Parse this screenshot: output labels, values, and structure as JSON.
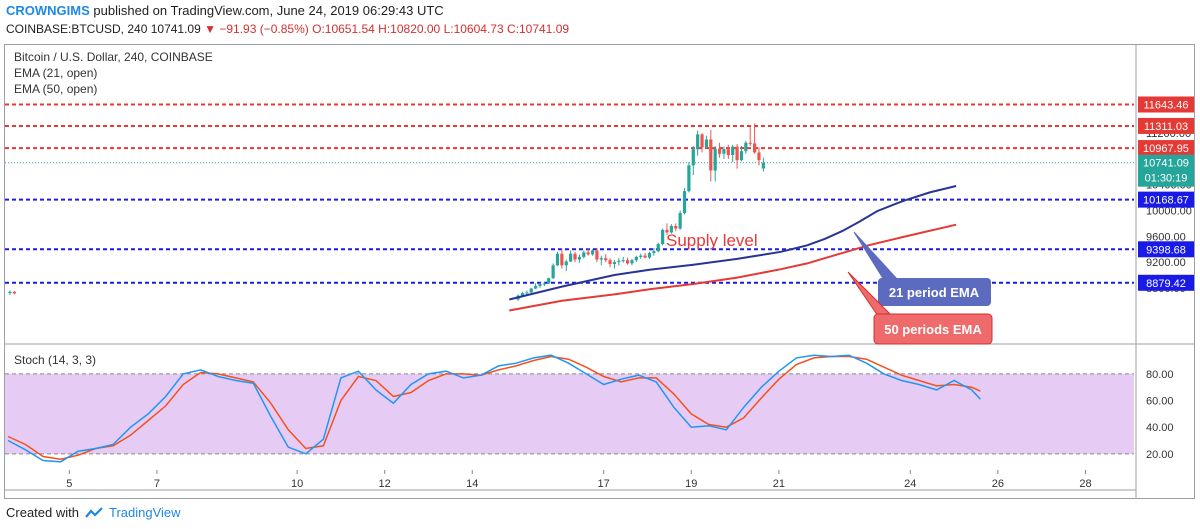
{
  "header": {
    "author": "CROWNGIMS",
    "published_text": "published on TradingView.com, June 24, 2019 06:29:43 UTC",
    "symbol": "COINBASE:BTCUSD, 240",
    "last": "10741.09",
    "change": "−91.93 (−0.85%)",
    "o": "O:10651.54",
    "h": "H:10820.00",
    "l": "L:10604.73",
    "c": "C:10741.09"
  },
  "legend": {
    "title": "Bitcoin / U.S. Dollar, 240, COINBASE",
    "ema21": "EMA (21, open)",
    "ema50": "EMA (50, open)",
    "stoch": "Stoch (14, 3, 3)"
  },
  "annotations": {
    "supply": "Supply level",
    "ema21_box": "21 period EMA",
    "ema50_box": "50 periods EMA"
  },
  "footer": {
    "created_with": "Created with",
    "brand": "TradingView"
  },
  "colors": {
    "up": "#26a69a",
    "down": "#ef5350",
    "ema21": "#283593",
    "ema50": "#e53935",
    "resistance": "#e53935",
    "support": "#1a1ae6",
    "stoch_k": "#2196f3",
    "stoch_d": "#f4511e",
    "stoch_band": "#e6ccf5",
    "box21": "#5c6bc0",
    "box50": "#ef6b6b"
  },
  "chart_data": {
    "type": "candlestick",
    "price_axis_ticks": [
      8800,
      9200,
      9600,
      10000,
      10400,
      11200
    ],
    "x_ticks": [
      {
        "label": "5",
        "i": 14
      },
      {
        "label": "7",
        "i": 34
      },
      {
        "label": "10",
        "i": 66
      },
      {
        "label": "12",
        "i": 86
      },
      {
        "label": "14",
        "i": 106
      },
      {
        "label": "17",
        "i": 136
      },
      {
        "label": "19",
        "i": 156
      },
      {
        "label": "21",
        "i": 176
      },
      {
        "label": "24",
        "i": 206
      },
      {
        "label": "26",
        "i": 226
      },
      {
        "label": "28",
        "i": 246
      }
    ],
    "red_levels": [
      {
        "value": 11643.46,
        "label": "11643.46"
      },
      {
        "value": 11311.03,
        "label": "11311.03"
      },
      {
        "value": 10967.95,
        "label": "10967.95"
      }
    ],
    "blue_levels": [
      {
        "value": 10168.67,
        "label": "10168.67"
      },
      {
        "value": 9398.68,
        "label": "9398.68"
      },
      {
        "value": 8879.42,
        "label": "8879.42"
      }
    ],
    "last_price": {
      "value": 10741.09,
      "label": "10741.09",
      "countdown": "01:30:19"
    },
    "candles": [
      [
        8720,
        8760,
        8690,
        8740
      ],
      [
        8740,
        8750,
        8700,
        8715
      ],
      [
        8620,
        8700,
        8600,
        8680
      ],
      [
        8680,
        8740,
        8660,
        8720
      ],
      [
        8720,
        8760,
        8700,
        8730
      ],
      [
        8730,
        8800,
        8720,
        8790
      ],
      [
        8790,
        8870,
        8780,
        8830
      ],
      [
        8830,
        8880,
        8800,
        8860
      ],
      [
        8860,
        8900,
        8830,
        8870
      ],
      [
        8870,
        8960,
        8860,
        8950
      ],
      [
        8950,
        9180,
        8940,
        9150
      ],
      [
        9150,
        9360,
        9140,
        9330
      ],
      [
        9330,
        9410,
        9100,
        9150
      ],
      [
        9150,
        9240,
        9060,
        9210
      ],
      [
        9210,
        9380,
        9200,
        9330
      ],
      [
        9330,
        9360,
        9200,
        9240
      ],
      [
        9240,
        9320,
        9190,
        9280
      ],
      [
        9280,
        9380,
        9260,
        9350
      ],
      [
        9350,
        9410,
        9300,
        9320
      ],
      [
        9320,
        9400,
        9300,
        9380
      ],
      [
        9380,
        9420,
        9200,
        9240
      ],
      [
        9240,
        9300,
        9150,
        9260
      ],
      [
        9260,
        9320,
        9200,
        9230
      ],
      [
        9230,
        9260,
        9120,
        9170
      ],
      [
        9170,
        9230,
        9100,
        9200
      ],
      [
        9200,
        9260,
        9150,
        9220
      ],
      [
        9220,
        9280,
        9190,
        9230
      ],
      [
        9230,
        9270,
        9160,
        9180
      ],
      [
        9180,
        9250,
        9150,
        9230
      ],
      [
        9230,
        9300,
        9200,
        9280
      ],
      [
        9280,
        9330,
        9250,
        9300
      ],
      [
        9300,
        9340,
        9260,
        9270
      ],
      [
        9270,
        9360,
        9250,
        9340
      ],
      [
        9340,
        9420,
        9300,
        9370
      ],
      [
        9370,
        9500,
        9350,
        9480
      ],
      [
        9480,
        9720,
        9460,
        9700
      ],
      [
        9700,
        9800,
        9620,
        9660
      ],
      [
        9660,
        9790,
        9640,
        9760
      ],
      [
        9760,
        9800,
        9680,
        9720
      ],
      [
        9720,
        10000,
        9700,
        9960
      ],
      [
        9960,
        10350,
        9940,
        10300
      ],
      [
        10300,
        10750,
        10280,
        10700
      ],
      [
        10700,
        11000,
        10550,
        10950
      ],
      [
        10950,
        11240,
        10850,
        11180
      ],
      [
        11180,
        11200,
        10900,
        10980
      ],
      [
        10980,
        11160,
        10960,
        11100
      ],
      [
        11100,
        11250,
        10450,
        10620
      ],
      [
        10620,
        11000,
        10450,
        10960
      ],
      [
        10960,
        11050,
        10820,
        10880
      ],
      [
        10880,
        10990,
        10800,
        10950
      ],
      [
        10950,
        11020,
        10800,
        10860
      ],
      [
        10860,
        11020,
        10750,
        10990
      ],
      [
        10990,
        11030,
        10650,
        10780
      ],
      [
        10780,
        11000,
        10760,
        10920
      ],
      [
        10920,
        11080,
        10880,
        11050
      ],
      [
        11050,
        11300,
        11000,
        11040
      ],
      [
        11040,
        11350,
        10880,
        10900
      ],
      [
        10900,
        10980,
        10700,
        10780
      ],
      [
        10651.54,
        10820,
        10604.73,
        10741.09
      ]
    ],
    "ema21": [
      [
        48,
        8620
      ],
      [
        60,
        8820
      ],
      [
        72,
        9000
      ],
      [
        80,
        9080
      ],
      [
        90,
        9160
      ],
      [
        100,
        9250
      ],
      [
        110,
        9360
      ],
      [
        116,
        9460
      ],
      [
        120,
        9560
      ],
      [
        124,
        9680
      ],
      [
        128,
        9830
      ],
      [
        132,
        9990
      ],
      [
        138,
        10150
      ],
      [
        144,
        10280
      ],
      [
        150,
        10380
      ]
    ],
    "ema50": [
      [
        48,
        8450
      ],
      [
        60,
        8600
      ],
      [
        72,
        8700
      ],
      [
        80,
        8780
      ],
      [
        90,
        8860
      ],
      [
        100,
        8960
      ],
      [
        110,
        9090
      ],
      [
        116,
        9180
      ],
      [
        120,
        9260
      ],
      [
        124,
        9340
      ],
      [
        130,
        9460
      ],
      [
        138,
        9590
      ],
      [
        150,
        9780
      ]
    ],
    "stoch_axis_ticks": [
      20,
      40,
      60,
      80
    ],
    "stoch_band": [
      20,
      80
    ],
    "stoch_k": [
      [
        0,
        30
      ],
      [
        4,
        23
      ],
      [
        8,
        15
      ],
      [
        12,
        14
      ],
      [
        16,
        22
      ],
      [
        20,
        24
      ],
      [
        24,
        27
      ],
      [
        28,
        40
      ],
      [
        32,
        50
      ],
      [
        36,
        63
      ],
      [
        40,
        80
      ],
      [
        44,
        83
      ],
      [
        48,
        78
      ],
      [
        52,
        75
      ],
      [
        56,
        73
      ],
      [
        60,
        48
      ],
      [
        64,
        25
      ],
      [
        68,
        20
      ],
      [
        72,
        31
      ],
      [
        76,
        77
      ],
      [
        80,
        82
      ],
      [
        84,
        68
      ],
      [
        88,
        58
      ],
      [
        92,
        72
      ],
      [
        96,
        80
      ],
      [
        100,
        82
      ],
      [
        104,
        77
      ],
      [
        108,
        79
      ],
      [
        112,
        86
      ],
      [
        116,
        88
      ],
      [
        120,
        92
      ],
      [
        124,
        94
      ],
      [
        128,
        88
      ],
      [
        132,
        80
      ],
      [
        136,
        72
      ],
      [
        140,
        76
      ],
      [
        144,
        79
      ],
      [
        148,
        74
      ],
      [
        152,
        55
      ],
      [
        156,
        40
      ],
      [
        160,
        41
      ],
      [
        164,
        38
      ],
      [
        168,
        55
      ],
      [
        172,
        70
      ],
      [
        176,
        82
      ],
      [
        180,
        92
      ],
      [
        184,
        94
      ],
      [
        188,
        93
      ],
      [
        192,
        94
      ],
      [
        196,
        88
      ],
      [
        200,
        80
      ],
      [
        204,
        75
      ],
      [
        208,
        72
      ],
      [
        212,
        68
      ],
      [
        216,
        75
      ],
      [
        220,
        68
      ],
      [
        222,
        61
      ]
    ],
    "stoch_d": [
      [
        0,
        33
      ],
      [
        4,
        27
      ],
      [
        8,
        18
      ],
      [
        12,
        16
      ],
      [
        16,
        19
      ],
      [
        20,
        24
      ],
      [
        24,
        26
      ],
      [
        28,
        34
      ],
      [
        32,
        45
      ],
      [
        36,
        56
      ],
      [
        40,
        72
      ],
      [
        44,
        81
      ],
      [
        48,
        80
      ],
      [
        52,
        77
      ],
      [
        56,
        74
      ],
      [
        60,
        58
      ],
      [
        64,
        38
      ],
      [
        68,
        24
      ],
      [
        72,
        26
      ],
      [
        76,
        60
      ],
      [
        80,
        78
      ],
      [
        84,
        75
      ],
      [
        88,
        63
      ],
      [
        92,
        66
      ],
      [
        96,
        75
      ],
      [
        100,
        80
      ],
      [
        104,
        80
      ],
      [
        108,
        79
      ],
      [
        112,
        83
      ],
      [
        116,
        86
      ],
      [
        120,
        90
      ],
      [
        124,
        93
      ],
      [
        128,
        91
      ],
      [
        132,
        85
      ],
      [
        136,
        78
      ],
      [
        140,
        74
      ],
      [
        144,
        77
      ],
      [
        148,
        77
      ],
      [
        152,
        65
      ],
      [
        156,
        50
      ],
      [
        160,
        42
      ],
      [
        164,
        40
      ],
      [
        168,
        47
      ],
      [
        172,
        62
      ],
      [
        176,
        76
      ],
      [
        180,
        87
      ],
      [
        184,
        92
      ],
      [
        188,
        93
      ],
      [
        192,
        93
      ],
      [
        196,
        91
      ],
      [
        200,
        85
      ],
      [
        204,
        79
      ],
      [
        208,
        75
      ],
      [
        212,
        71
      ],
      [
        216,
        72
      ],
      [
        220,
        70
      ],
      [
        222,
        67
      ]
    ]
  }
}
